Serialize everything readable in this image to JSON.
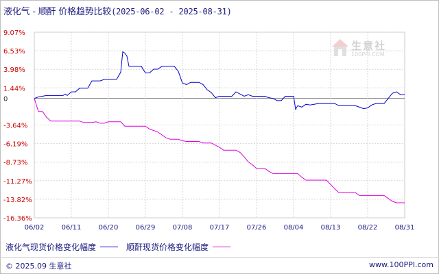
{
  "header": {
    "title": "液化气 - 顺酐 价格趋势比较",
    "range": "(2025-06-02 - 2025-08-31)"
  },
  "legend": {
    "series1": "液化气现货价格变化幅度",
    "series2": "顺酐现货价格变化幅度"
  },
  "footer": {
    "left": "© 2025.09 生意社",
    "right": "www.100PPI.com"
  },
  "watermark": {
    "text": "生意社",
    "sub": "100PPI.COM"
  },
  "chart_data": {
    "type": "line",
    "x_ticks": [
      "06/02",
      "06/11",
      "06/20",
      "06/29",
      "07/08",
      "07/17",
      "07/26",
      "08/04",
      "08/13",
      "08/22",
      "08/31"
    ],
    "y_ticks": [
      "9.07%",
      "6.53%",
      "3.98%",
      "1.44%",
      "0",
      "-3.64%",
      "-6.19%",
      "-8.73%",
      "-11.27%",
      "-13.82%",
      "-16.36%"
    ],
    "y_tick_values": [
      9.07,
      6.53,
      3.98,
      1.44,
      0,
      -3.64,
      -6.19,
      -8.73,
      -11.27,
      -13.82,
      -16.36
    ],
    "ylim": [
      -16.36,
      9.07
    ],
    "x_range_days": [
      0,
      90
    ],
    "grid": true,
    "legend_position": "bottom-left",
    "series": [
      {
        "name": "液化气现货价格变化幅度",
        "color": "#0000cc",
        "points": [
          [
            0,
            0
          ],
          [
            1,
            0.2
          ],
          [
            3,
            0.4
          ],
          [
            7,
            0.4
          ],
          [
            7.5,
            0.6
          ],
          [
            8,
            0.4
          ],
          [
            9,
            0.9
          ],
          [
            10,
            0.9
          ],
          [
            11,
            1.4
          ],
          [
            13,
            1.4
          ],
          [
            14,
            2.4
          ],
          [
            16,
            2.4
          ],
          [
            17,
            2.6
          ],
          [
            20,
            2.6
          ],
          [
            21,
            3.6
          ],
          [
            21.5,
            6.4
          ],
          [
            22,
            6.2
          ],
          [
            22.5,
            5.8
          ],
          [
            23,
            4.4
          ],
          [
            26,
            4.4
          ],
          [
            27,
            3.5
          ],
          [
            28,
            3.5
          ],
          [
            29,
            4.0
          ],
          [
            30,
            4.0
          ],
          [
            31,
            4.4
          ],
          [
            34,
            4.4
          ],
          [
            35,
            3.7
          ],
          [
            36,
            2.1
          ],
          [
            37,
            1.9
          ],
          [
            38,
            2.2
          ],
          [
            40,
            2.2
          ],
          [
            41,
            1.9
          ],
          [
            42,
            1.2
          ],
          [
            43,
            0.8
          ],
          [
            44,
            0.1
          ],
          [
            45,
            0.3
          ],
          [
            48,
            0.3
          ],
          [
            49,
            0.9
          ],
          [
            50,
            0.6
          ],
          [
            51,
            0.3
          ],
          [
            52,
            0.5
          ],
          [
            53,
            0.3
          ],
          [
            54,
            0.3
          ],
          [
            56,
            0.3
          ],
          [
            57,
            0.1
          ],
          [
            58,
            0.0
          ],
          [
            59,
            -0.3
          ],
          [
            60,
            -0.3
          ],
          [
            61,
            0.3
          ],
          [
            63,
            0.3
          ],
          [
            63.5,
            -1.5
          ],
          [
            64,
            -1.0
          ],
          [
            65,
            -1.2
          ],
          [
            66,
            -0.8
          ],
          [
            67,
            -0.9
          ],
          [
            68,
            -0.8
          ],
          [
            69,
            -0.7
          ],
          [
            70,
            -0.7
          ],
          [
            71,
            -0.7
          ],
          [
            73,
            -0.7
          ],
          [
            74,
            -1.0
          ],
          [
            78,
            -1.0
          ],
          [
            79,
            -1.2
          ],
          [
            80,
            -1.4
          ],
          [
            81,
            -1.3
          ],
          [
            82,
            -0.9
          ],
          [
            83,
            -0.7
          ],
          [
            85,
            -0.7
          ],
          [
            86,
            0.0
          ],
          [
            87,
            0.7
          ],
          [
            88,
            0.9
          ],
          [
            89,
            0.5
          ],
          [
            90,
            0.5
          ]
        ]
      },
      {
        "name": "顺酐现货价格变化幅度",
        "color": "#dd00dd",
        "points": [
          [
            0,
            0
          ],
          [
            1,
            -1.8
          ],
          [
            2,
            -1.8
          ],
          [
            3,
            -2.6
          ],
          [
            4,
            -3.1
          ],
          [
            11,
            -3.1
          ],
          [
            12,
            -3.3
          ],
          [
            14,
            -3.3
          ],
          [
            15,
            -3.2
          ],
          [
            16,
            -3.4
          ],
          [
            17,
            -3.4
          ],
          [
            18,
            -3.2
          ],
          [
            21,
            -3.2
          ],
          [
            22,
            -3.8
          ],
          [
            27,
            -3.8
          ],
          [
            28,
            -4.2
          ],
          [
            30,
            -4.6
          ],
          [
            31,
            -5.0
          ],
          [
            32,
            -5.4
          ],
          [
            33,
            -5.6
          ],
          [
            35,
            -5.6
          ],
          [
            36,
            -5.8
          ],
          [
            37,
            -5.9
          ],
          [
            40,
            -5.9
          ],
          [
            41,
            -6.1
          ],
          [
            43,
            -6.1
          ],
          [
            44,
            -6.4
          ],
          [
            45,
            -6.7
          ],
          [
            46,
            -7.1
          ],
          [
            49,
            -7.1
          ],
          [
            50,
            -7.4
          ],
          [
            51,
            -8.0
          ],
          [
            52,
            -8.7
          ],
          [
            53,
            -9.1
          ],
          [
            54,
            -9.6
          ],
          [
            56,
            -9.6
          ],
          [
            57,
            -10.0
          ],
          [
            58,
            -10.3
          ],
          [
            64,
            -10.3
          ],
          [
            65,
            -10.8
          ],
          [
            66,
            -11.2
          ],
          [
            71,
            -11.2
          ],
          [
            72,
            -11.8
          ],
          [
            73,
            -12.4
          ],
          [
            74,
            -12.9
          ],
          [
            78,
            -12.9
          ],
          [
            79,
            -13.3
          ],
          [
            85,
            -13.3
          ],
          [
            86,
            -13.7
          ],
          [
            87,
            -14.1
          ],
          [
            88,
            -14.3
          ],
          [
            90,
            -14.3
          ]
        ]
      }
    ]
  }
}
